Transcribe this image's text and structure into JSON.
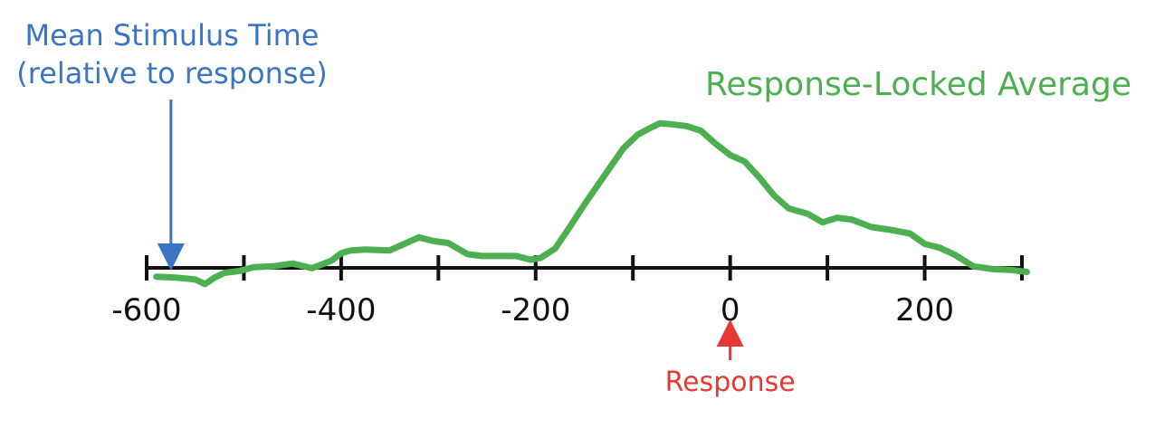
{
  "chart_data": {
    "type": "line",
    "title": "",
    "xlabel": "",
    "ylabel": "",
    "xlim": [
      -600,
      300
    ],
    "ylim": [
      -0.2,
      1.6
    ],
    "grid": false,
    "legend": "none",
    "x_ticks": [
      -600,
      -500,
      -400,
      -300,
      -200,
      -100,
      0,
      100,
      200,
      300
    ],
    "x_tick_labels": [
      {
        "value": -600,
        "label": "-600"
      },
      {
        "value": -400,
        "label": "-400"
      },
      {
        "value": -200,
        "label": "-200"
      },
      {
        "value": 0,
        "label": "0"
      },
      {
        "value": 200,
        "label": "200"
      }
    ],
    "series": [
      {
        "name": "Response-Locked Average",
        "color": "#4caf50",
        "x": [
          -590,
          -570,
          -550,
          -540,
          -530,
          -520,
          -505,
          -490,
          -470,
          -450,
          -430,
          -410,
          -400,
          -390,
          -375,
          -350,
          -335,
          -320,
          -305,
          -290,
          -270,
          -255,
          -240,
          -220,
          -205,
          -195,
          -180,
          -165,
          -150,
          -130,
          -110,
          -95,
          -80,
          -72,
          -62,
          -45,
          -30,
          -15,
          0,
          15,
          30,
          45,
          60,
          80,
          95,
          110,
          125,
          145,
          165,
          185,
          200,
          215,
          230,
          250,
          270,
          290,
          305
        ],
        "y": [
          -0.1,
          -0.11,
          -0.13,
          -0.18,
          -0.11,
          -0.06,
          -0.04,
          0.0,
          0.01,
          0.04,
          -0.01,
          0.07,
          0.15,
          0.18,
          0.19,
          0.18,
          0.25,
          0.32,
          0.28,
          0.26,
          0.14,
          0.12,
          0.12,
          0.12,
          0.08,
          0.1,
          0.2,
          0.43,
          0.67,
          0.97,
          1.27,
          1.42,
          1.5,
          1.54,
          1.53,
          1.51,
          1.46,
          1.32,
          1.2,
          1.13,
          0.96,
          0.77,
          0.63,
          0.57,
          0.48,
          0.53,
          0.51,
          0.43,
          0.4,
          0.36,
          0.25,
          0.21,
          0.14,
          0.01,
          -0.02,
          -0.03,
          -0.05
        ]
      }
    ]
  },
  "annotations": {
    "series_label": "Response-Locked Average",
    "stimulus": {
      "text_line1": "Mean Stimulus Time",
      "text_line2": "(relative to response)",
      "x": -575,
      "color": "#3a75c4"
    },
    "response": {
      "text": "Response",
      "x": 0,
      "color": "#e53935"
    }
  }
}
